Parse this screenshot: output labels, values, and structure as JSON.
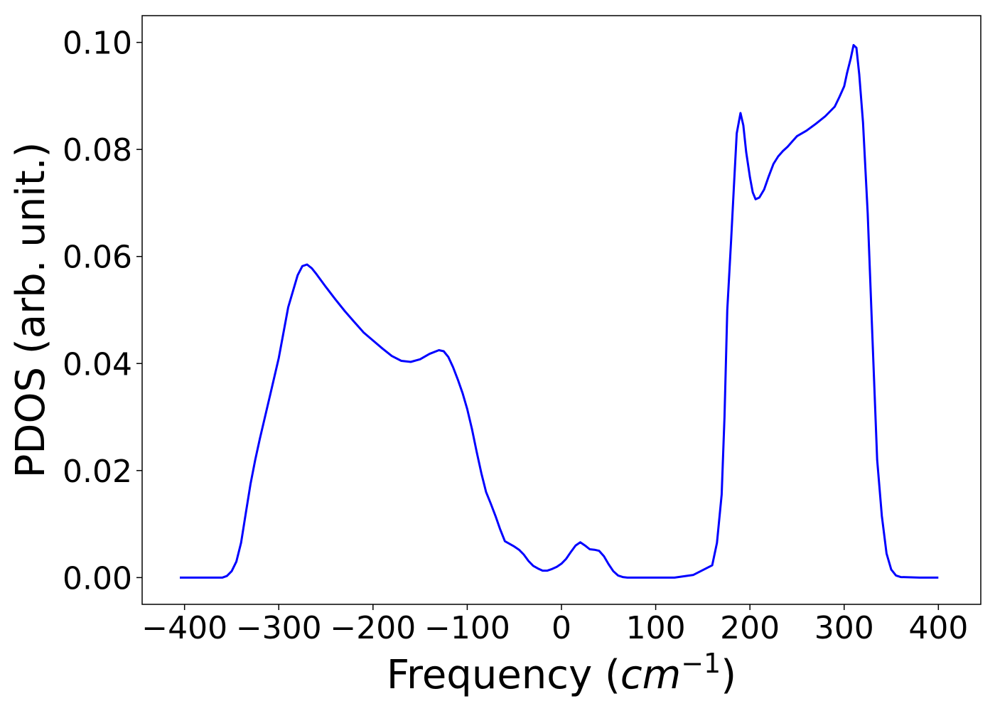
{
  "chart_data": {
    "type": "line",
    "title": "",
    "xlabel": "Frequency",
    "xlabel_unit": "cm",
    "xlabel_unit_exponent": "−1",
    "ylabel": "PDOS (arb. unit.)",
    "xlim": [
      -445,
      445
    ],
    "ylim": [
      -0.005,
      0.105
    ],
    "grid": false,
    "xticks": [
      -400,
      -300,
      -200,
      -100,
      0,
      100,
      200,
      300,
      400
    ],
    "xtick_labels": [
      "−400",
      "−300",
      "−200",
      "−100",
      "0",
      "100",
      "200",
      "300",
      "400"
    ],
    "yticks": [
      0.0,
      0.02,
      0.04,
      0.06,
      0.08,
      0.1
    ],
    "ytick_labels": [
      "0.00",
      "0.02",
      "0.04",
      "0.06",
      "0.08",
      "0.10"
    ],
    "series": [
      {
        "color": "#0000ff",
        "x": [
          -405,
          -380,
          -360,
          -355,
          -350,
          -345,
          -340,
          -335,
          -330,
          -325,
          -320,
          -310,
          -300,
          -290,
          -280,
          -275,
          -270,
          -265,
          -260,
          -255,
          -250,
          -240,
          -230,
          -220,
          -210,
          -200,
          -190,
          -180,
          -170,
          -160,
          -150,
          -140,
          -130,
          -125,
          -120,
          -115,
          -110,
          -105,
          -100,
          -95,
          -90,
          -85,
          -80,
          -75,
          -70,
          -65,
          -60,
          -50,
          -45,
          -40,
          -35,
          -30,
          -25,
          -20,
          -15,
          -10,
          -5,
          0,
          5,
          10,
          15,
          20,
          25,
          30,
          35,
          40,
          45,
          50,
          55,
          60,
          65,
          70,
          75,
          80,
          85,
          90,
          100,
          120,
          140,
          160,
          165,
          170,
          173,
          176,
          180,
          183,
          186,
          190,
          193,
          196,
          200,
          203,
          206,
          210,
          215,
          220,
          225,
          230,
          235,
          240,
          245,
          250,
          260,
          270,
          280,
          290,
          295,
          300,
          303,
          307,
          310,
          313,
          316,
          320,
          325,
          330,
          335,
          340,
          345,
          350,
          355,
          360,
          380,
          400
        ],
        "values": [
          0.0,
          0.0,
          0.0,
          0.0003,
          0.0012,
          0.003,
          0.0065,
          0.012,
          0.0175,
          0.022,
          0.026,
          0.0335,
          0.041,
          0.0505,
          0.0565,
          0.0582,
          0.0585,
          0.0578,
          0.0567,
          0.0555,
          0.0543,
          0.052,
          0.0498,
          0.0478,
          0.0458,
          0.0443,
          0.0428,
          0.0414,
          0.0405,
          0.0403,
          0.0408,
          0.0418,
          0.0425,
          0.0423,
          0.0412,
          0.0393,
          0.037,
          0.0345,
          0.0315,
          0.0278,
          0.0235,
          0.0195,
          0.016,
          0.0138,
          0.0115,
          0.009,
          0.0068,
          0.0058,
          0.0052,
          0.0043,
          0.0031,
          0.0022,
          0.0017,
          0.0013,
          0.0013,
          0.0016,
          0.002,
          0.0026,
          0.0035,
          0.0048,
          0.006,
          0.0066,
          0.006,
          0.0053,
          0.0052,
          0.005,
          0.004,
          0.0025,
          0.0012,
          0.0004,
          0.0001,
          0.0,
          0.0,
          0.0,
          0.0,
          0.0,
          0.0,
          0.0,
          0.0005,
          0.0023,
          0.0065,
          0.0155,
          0.03,
          0.05,
          0.063,
          0.073,
          0.083,
          0.0868,
          0.0845,
          0.0795,
          0.0748,
          0.072,
          0.0707,
          0.071,
          0.0725,
          0.075,
          0.0773,
          0.0787,
          0.0797,
          0.0805,
          0.0815,
          0.0825,
          0.0835,
          0.0848,
          0.0862,
          0.088,
          0.0898,
          0.0918,
          0.0942,
          0.097,
          0.0995,
          0.099,
          0.094,
          0.085,
          0.068,
          0.045,
          0.022,
          0.0115,
          0.0045,
          0.0015,
          0.0004,
          0.0001,
          0.0,
          0.0
        ]
      }
    ]
  }
}
